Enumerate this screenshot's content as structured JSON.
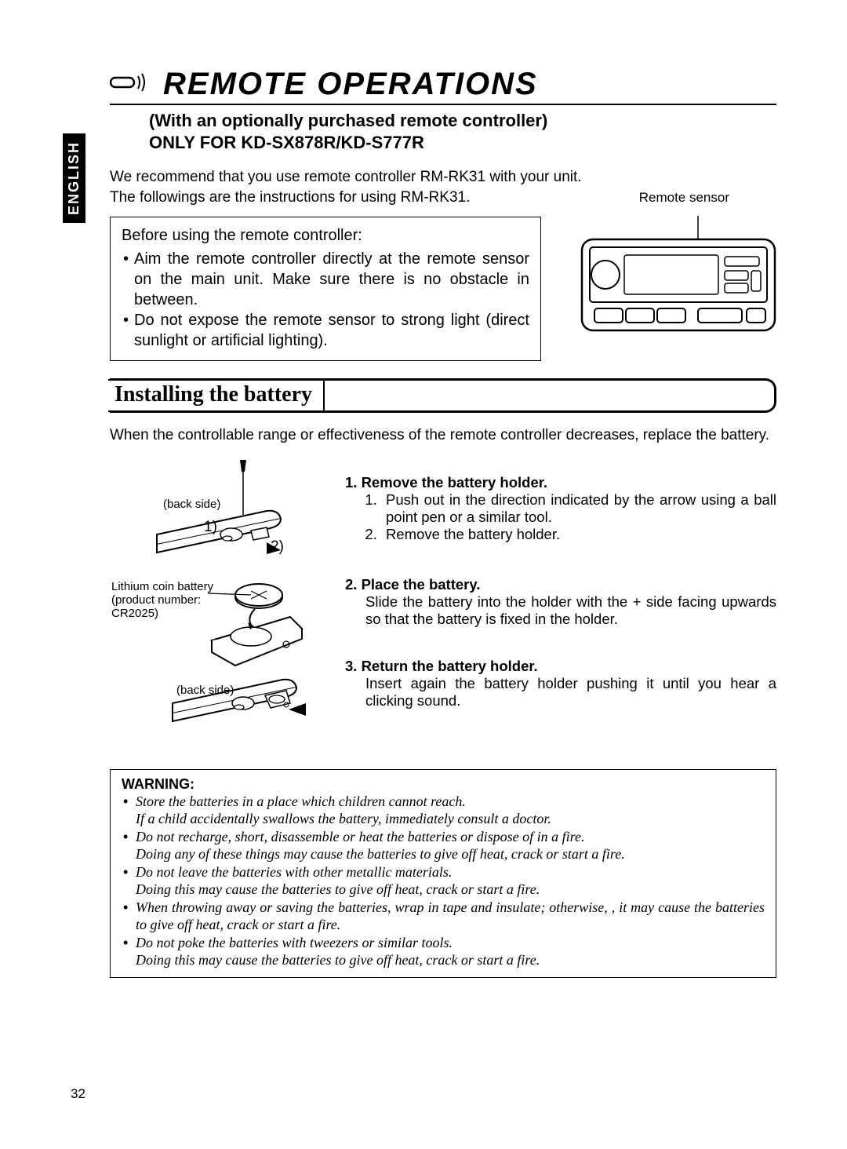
{
  "language_tab": "ENGLISH",
  "title": "REMOTE OPERATIONS",
  "subtitle_line1": "(With an optionally purchased remote controller)",
  "subtitle_line2": "ONLY FOR KD-SX878R/KD-S777R",
  "intro1": "We recommend that you use remote controller RM-RK31 with your unit.",
  "intro2": "The followings are the instructions for using RM-RK31.",
  "sensor_label": "Remote sensor",
  "before": {
    "lead": "Before using the remote controller:",
    "items": [
      "Aim the remote controller directly at the remote sensor on the main unit. Make sure there is no obstacle in between.",
      "Do not expose the remote sensor to strong light (direct sunlight or artificial lighting)."
    ]
  },
  "section_heading": "Installing the battery",
  "section_intro": "When the controllable range or effectiveness of the remote controller decreases, replace the battery.",
  "illo_captions": {
    "back_side_1": "(back side)",
    "step1_num": "1)",
    "step2_num": "2)",
    "battery_note_l1": "Lithium coin battery",
    "battery_note_l2": "(product number:",
    "battery_note_l3": "CR2025)",
    "back_side_2": "(back side)"
  },
  "steps": [
    {
      "title": "1.  Remove the battery holder.",
      "sub": [
        "Push out in the direction indicated by the arrow using a ball point pen or a similar tool.",
        "Remove the battery holder."
      ]
    },
    {
      "title": "2.  Place the battery.",
      "body": "Slide the battery into the holder with the + side facing upwards so that the battery is fixed in the holder."
    },
    {
      "title": "3.  Return the battery holder.",
      "body": "Insert again the battery holder pushing it until you hear a clicking sound."
    }
  ],
  "warning": {
    "title": "WARNING:",
    "items": [
      "Store the batteries in a place which children cannot reach.\nIf a child accidentally swallows the battery, immediately consult a doctor.",
      "Do not recharge, short, disassemble or heat the batteries or dispose of in a fire.\nDoing any of these things may cause the batteries to give off heat, crack or start a fire.",
      "Do not leave the batteries with other metallic materials.\nDoing this may cause the batteries to give off heat, crack or start a fire.",
      "When throwing away or saving the batteries, wrap in tape and insulate; otherwise, , it may cause the batteries to give off heat, crack or start a fire.",
      "Do not poke the batteries with tweezers or similar tools.\nDoing this may cause the batteries to give off heat, crack or start a fire."
    ]
  },
  "page_number": "32",
  "colors": {
    "text": "#000000",
    "bg": "#ffffff"
  }
}
